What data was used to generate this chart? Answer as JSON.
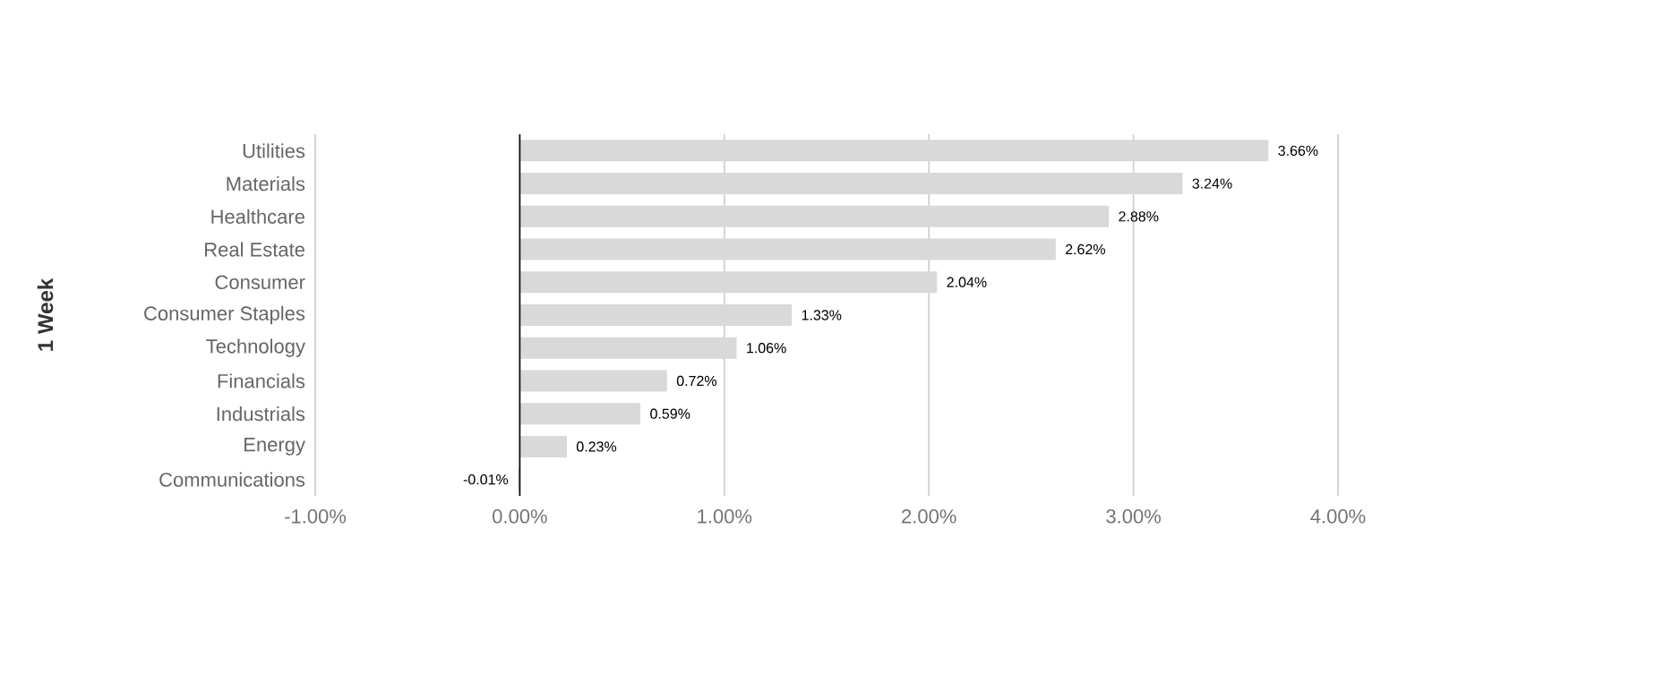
{
  "chart_data": {
    "type": "bar",
    "orientation": "horizontal",
    "ylabel": "1 Week",
    "categories": [
      "Utilities",
      "Materials",
      "Healthcare",
      "Real Estate",
      "Consumer",
      "Consumer Staples",
      "Technology",
      "Financials",
      "Industrials",
      "Energy",
      "Communications"
    ],
    "values": [
      3.66,
      3.24,
      2.88,
      2.62,
      2.04,
      1.33,
      1.06,
      0.72,
      0.59,
      0.23,
      -0.01
    ],
    "value_labels": [
      "3.66%",
      "3.24%",
      "2.88%",
      "2.62%",
      "2.04%",
      "1.33%",
      "1.06%",
      "0.72%",
      "0.59%",
      "0.23%",
      "-0.01%"
    ],
    "color": "#d9d9d9",
    "xlim": [
      -1,
      4
    ],
    "xticks": [
      {
        "value": -1,
        "label": "-1.00%"
      },
      {
        "value": 0,
        "label": "0.00%"
      },
      {
        "value": 1,
        "label": "1.00%"
      },
      {
        "value": 2,
        "label": "2.00%"
      },
      {
        "value": 3,
        "label": "3.00%"
      },
      {
        "value": 4,
        "label": "4.00%"
      }
    ],
    "grid": "x"
  }
}
